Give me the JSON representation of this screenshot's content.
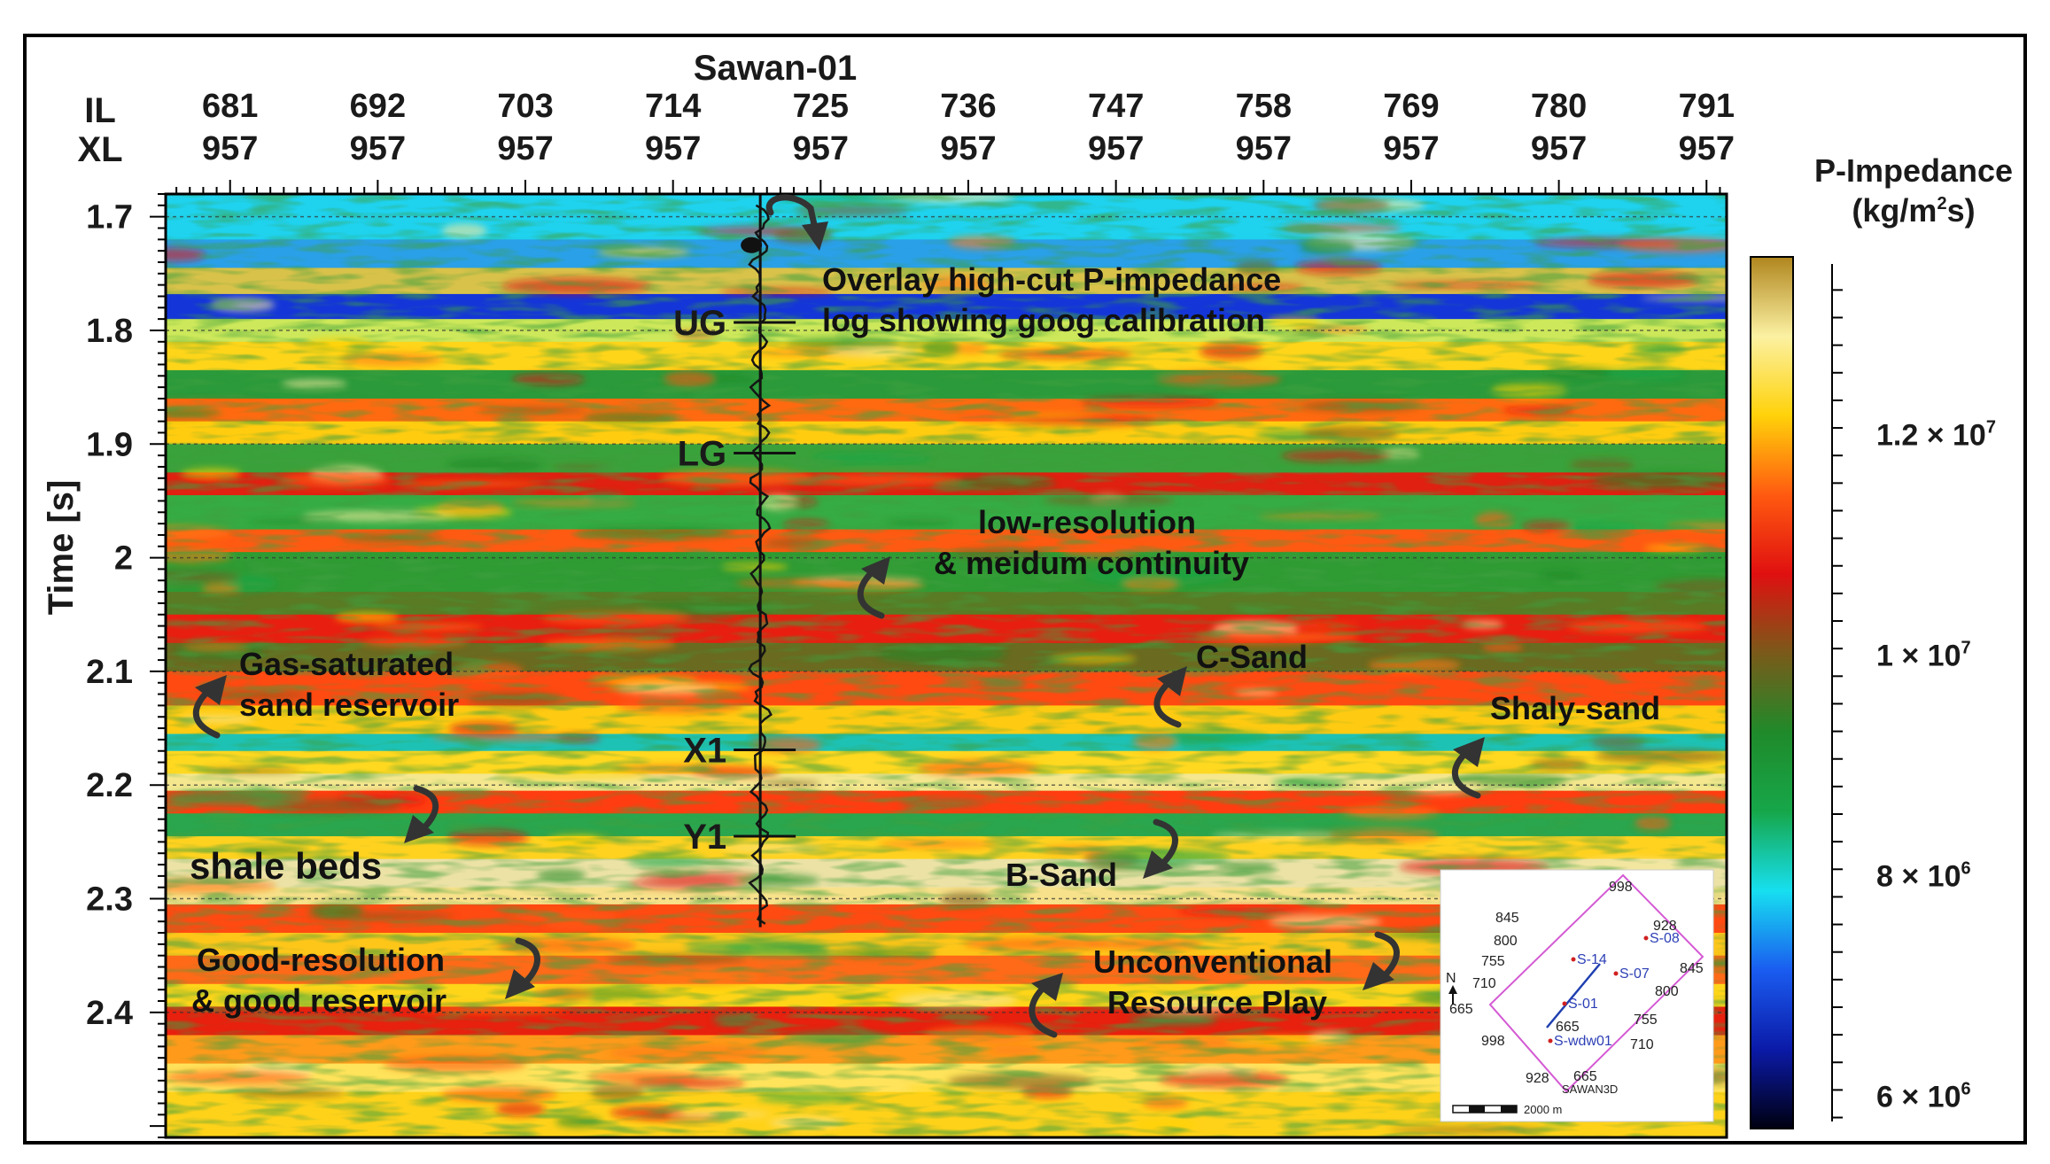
{
  "well": {
    "name": "Sawan-01",
    "trace_position": 720.5
  },
  "header": {
    "row1_label": "IL",
    "row2_label": "XL"
  },
  "inline_ticks": [
    {
      "il": "681",
      "xl": "957",
      "pos": 681
    },
    {
      "il": "692",
      "xl": "957",
      "pos": 692
    },
    {
      "il": "703",
      "xl": "957",
      "pos": 703
    },
    {
      "il": "714",
      "xl": "957",
      "pos": 714
    },
    {
      "il": "725",
      "xl": "957",
      "pos": 725
    },
    {
      "il": "736",
      "xl": "957",
      "pos": 736
    },
    {
      "il": "747",
      "xl": "957",
      "pos": 747
    },
    {
      "il": "758",
      "xl": "957",
      "pos": 758
    },
    {
      "il": "769",
      "xl": "957",
      "pos": 769
    },
    {
      "il": "780",
      "xl": "957",
      "pos": 780
    },
    {
      "il": "791",
      "xl": "957",
      "pos": 791
    }
  ],
  "time_axis": {
    "label": "Time [s]",
    "range": [
      1.68,
      2.51
    ],
    "ticks": [
      {
        "label": "1.7",
        "value": 1.7
      },
      {
        "label": "1.8",
        "value": 1.8
      },
      {
        "label": "1.9",
        "value": 1.9
      },
      {
        "label": "2",
        "value": 2.0
      },
      {
        "label": "2.1",
        "value": 2.1
      },
      {
        "label": "2.2",
        "value": 2.2
      },
      {
        "label": "2.3",
        "value": 2.3
      },
      {
        "label": "2.4",
        "value": 2.4
      }
    ]
  },
  "inline_range": [
    676.2,
    792.5
  ],
  "horizons": [
    {
      "name": "UG",
      "time": 1.793
    },
    {
      "name": "LG",
      "time": 1.908
    },
    {
      "name": "X1",
      "time": 2.169
    },
    {
      "name": "Y1",
      "time": 2.245
    }
  ],
  "annotations": [
    {
      "id": "overlay",
      "lines": [
        "Overlay high-cut P-impedance",
        "log showing goog calibration"
      ]
    },
    {
      "id": "low-resolution",
      "lines": [
        "low-resolution",
        "& meidum continuity"
      ]
    },
    {
      "id": "gas-saturated",
      "lines": [
        "Gas-saturated",
        "sand reservoir"
      ]
    },
    {
      "id": "c-sand",
      "lines": [
        "C-Sand"
      ]
    },
    {
      "id": "shaly-sand",
      "lines": [
        "Shaly-sand"
      ]
    },
    {
      "id": "shale-beds",
      "lines": [
        "shale beds"
      ]
    },
    {
      "id": "b-sand",
      "lines": [
        "B-Sand"
      ]
    },
    {
      "id": "good-resolution",
      "lines": [
        "Good-resolution",
        "& good reservoir"
      ]
    },
    {
      "id": "unconventional",
      "lines": [
        "Unconventional",
        "Resource Play"
      ]
    }
  ],
  "colorbar": {
    "title_line1": "P-Impedance",
    "title_line2": "(kg/m",
    "title_sup": "2",
    "title_line2_end": "s)",
    "range": [
      5700000.0,
      13600000.0
    ],
    "ticks": [
      {
        "mantissa": "1.2 × 10",
        "exp": "7",
        "value": 12000000.0
      },
      {
        "mantissa": "1 × 10",
        "exp": "7",
        "value": 10000000.0
      },
      {
        "mantissa": "8 × 10",
        "exp": "6",
        "value": 8000000.0
      },
      {
        "mantissa": "6 × 10",
        "exp": "6",
        "value": 6000000.0
      }
    ],
    "colors": [
      "#000010",
      "#0b1aa8",
      "#1a5cf0",
      "#17dff0",
      "#16a74a",
      "#1f8a2a",
      "#7a5a1a",
      "#e01010",
      "#ff5a10",
      "#ffd20a",
      "#fbf1a2",
      "#b0861e"
    ]
  },
  "inset_map": {
    "name": "SAWAN3D",
    "north_label": "N",
    "scale_label": "2000 m",
    "inline_numbers": [
      "845",
      "800",
      "755",
      "710",
      "665"
    ],
    "crossline_numbers": [
      "998",
      "928",
      "845",
      "800",
      "755",
      "710",
      "665"
    ],
    "bottom_numbers": [
      "998",
      "928",
      "665"
    ],
    "wells": [
      "S-14",
      "S-08",
      "S-07",
      "S-01",
      "S-wdw01"
    ],
    "colors": {
      "outline": "#d45ad4",
      "well_text": "#2c3fb5",
      "well_dot": "#d02020",
      "line": "#1f3fb0"
    }
  }
}
